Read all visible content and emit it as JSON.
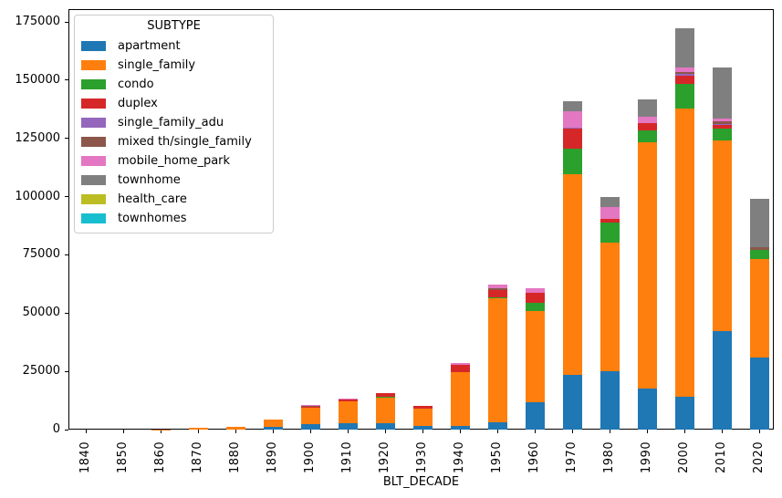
{
  "chart_data": {
    "type": "bar",
    "stacked": true,
    "title": "",
    "xlabel": "BLT_DECADE",
    "ylabel": "",
    "legend_title": "SUBTYPE",
    "legend_position": "upper left",
    "grid": false,
    "background_color": "#ffffff",
    "axis_color": "#000000",
    "ylim": [
      0,
      180500
    ],
    "yticks": [
      0,
      25000,
      50000,
      75000,
      100000,
      125000,
      150000,
      175000
    ],
    "categories": [
      "1840",
      "1850",
      "1860",
      "1870",
      "1880",
      "1890",
      "1900",
      "1910",
      "1920",
      "1930",
      "1940",
      "1950",
      "1960",
      "1970",
      "1980",
      "1990",
      "2000",
      "2010",
      "2020"
    ],
    "series": [
      {
        "name": "apartment",
        "color": "#1f77b4",
        "values": [
          0,
          0,
          0,
          0,
          0,
          1200,
          2200,
          2600,
          2900,
          1600,
          1700,
          3300,
          11800,
          23400,
          25200,
          17600,
          14200,
          42200,
          31000
        ]
      },
      {
        "name": "single_family",
        "color": "#ff7f0e",
        "values": [
          0,
          0,
          100,
          600,
          1300,
          3100,
          7200,
          9600,
          10900,
          7300,
          23000,
          52900,
          39200,
          86200,
          55200,
          105800,
          123500,
          82000,
          42200
        ]
      },
      {
        "name": "condo",
        "color": "#2ca02c",
        "values": [
          0,
          0,
          0,
          0,
          0,
          0,
          0,
          0,
          400,
          0,
          0,
          400,
          3500,
          11100,
          8500,
          5200,
          10700,
          5100,
          3900
        ]
      },
      {
        "name": "duplex",
        "color": "#d62728",
        "values": [
          0,
          0,
          0,
          0,
          0,
          200,
          500,
          600,
          1600,
          1300,
          3300,
          3400,
          4300,
          8400,
          1700,
          2900,
          3600,
          1500,
          0
        ]
      },
      {
        "name": "single_family_adu",
        "color": "#9467bd",
        "values": [
          0,
          0,
          0,
          0,
          0,
          0,
          0,
          0,
          0,
          0,
          0,
          0,
          0,
          700,
          0,
          0,
          800,
          400,
          0
        ]
      },
      {
        "name": "mixed th/single_family",
        "color": "#8c564b",
        "values": [
          0,
          0,
          0,
          0,
          0,
          0,
          400,
          300,
          0,
          0,
          0,
          600,
          0,
          0,
          0,
          0,
          800,
          1000,
          1300
        ]
      },
      {
        "name": "mobile_home_park",
        "color": "#e377c2",
        "values": [
          0,
          0,
          0,
          0,
          0,
          0,
          400,
          200,
          0,
          0,
          500,
          1800,
          2000,
          6800,
          5100,
          3000,
          1700,
          1300,
          0
        ]
      },
      {
        "name": "townhome",
        "color": "#7f7f7f",
        "values": [
          0,
          0,
          0,
          0,
          0,
          0,
          0,
          0,
          0,
          0,
          0,
          0,
          0,
          4300,
          4300,
          7400,
          17000,
          21800,
          20500
        ]
      },
      {
        "name": "health_care",
        "color": "#bcbd22",
        "values": [
          0,
          0,
          0,
          0,
          0,
          0,
          0,
          0,
          0,
          0,
          0,
          0,
          0,
          0,
          0,
          0,
          0,
          0,
          0
        ]
      },
      {
        "name": "townhomes",
        "color": "#17becf",
        "values": [
          0,
          0,
          0,
          0,
          0,
          0,
          0,
          0,
          0,
          0,
          0,
          0,
          0,
          0,
          0,
          0,
          0,
          0,
          0
        ]
      }
    ]
  }
}
